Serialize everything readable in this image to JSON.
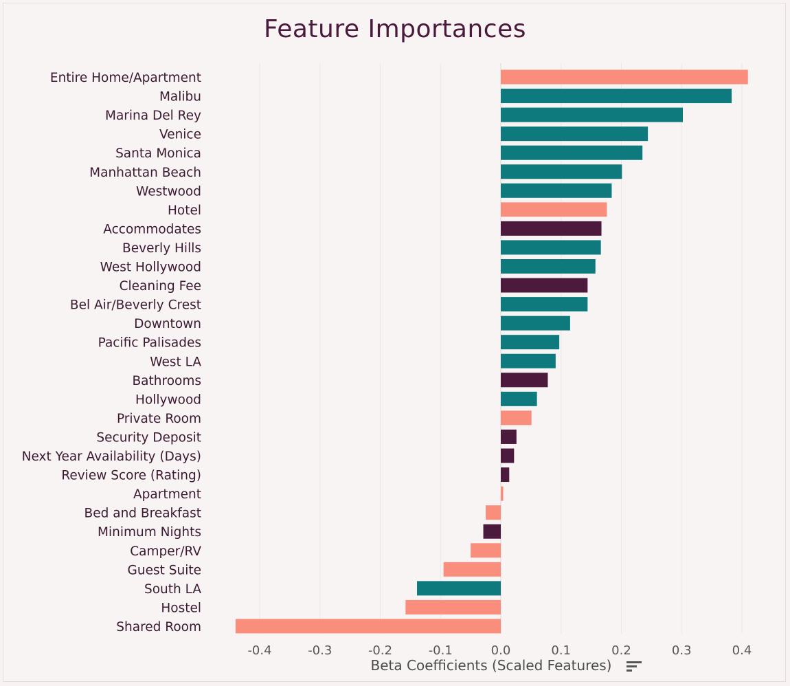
{
  "chart_data": {
    "type": "bar",
    "orientation": "horizontal",
    "title": "Feature Importances",
    "xlabel": "Beta Coefficients (Scaled Features)",
    "ylabel": "",
    "xlim": [
      -0.44,
      0.42
    ],
    "xticks": [
      "-0.4",
      "-0.3",
      "-0.2",
      "-0.1",
      "0.0",
      "0.1",
      "0.2",
      "0.3",
      "0.4"
    ],
    "xtick_values": [
      -0.4,
      -0.3,
      -0.2,
      -0.1,
      0.0,
      0.1,
      0.2,
      0.3,
      0.4
    ],
    "grid": "vertical",
    "categories": [
      "Entire Home/Apartment",
      "Malibu",
      "Marina Del Rey",
      "Venice",
      "Santa Monica",
      "Manhattan Beach",
      "Westwood",
      "Hotel",
      "Accommodates",
      "Beverly Hills",
      "West Hollywood",
      "Cleaning Fee",
      "Bel Air/Beverly Crest",
      "Downtown",
      "Pacific Palisades",
      "West LA",
      "Bathrooms",
      "Hollywood",
      "Private Room",
      "Security Deposit",
      "Next Year Availability (Days)",
      "Review Score (Rating)",
      "Apartment",
      "Bed and Breakfast",
      "Minimum Nights",
      "Camper/RV",
      "Guest Suite",
      "South LA",
      "Hostel",
      "Shared Room"
    ],
    "values": [
      0.41,
      0.383,
      0.302,
      0.244,
      0.235,
      0.201,
      0.184,
      0.176,
      0.167,
      0.166,
      0.157,
      0.144,
      0.144,
      0.115,
      0.097,
      0.091,
      0.078,
      0.06,
      0.051,
      0.026,
      0.022,
      0.014,
      0.004,
      -0.025,
      -0.029,
      -0.05,
      -0.095,
      -0.139,
      -0.158,
      -0.44
    ],
    "groups": [
      "room",
      "neighborhood",
      "neighborhood",
      "neighborhood",
      "neighborhood",
      "neighborhood",
      "neighborhood",
      "room",
      "numeric",
      "neighborhood",
      "neighborhood",
      "numeric",
      "neighborhood",
      "neighborhood",
      "neighborhood",
      "neighborhood",
      "numeric",
      "neighborhood",
      "room",
      "numeric",
      "numeric",
      "numeric",
      "room",
      "room",
      "numeric",
      "room",
      "room",
      "neighborhood",
      "room",
      "room"
    ],
    "colors": {
      "room": "#fa8e7d",
      "neighborhood": "#0e7a7e",
      "numeric": "#4b1a3c"
    }
  },
  "icons": {
    "sort": "sort-descending-icon"
  }
}
